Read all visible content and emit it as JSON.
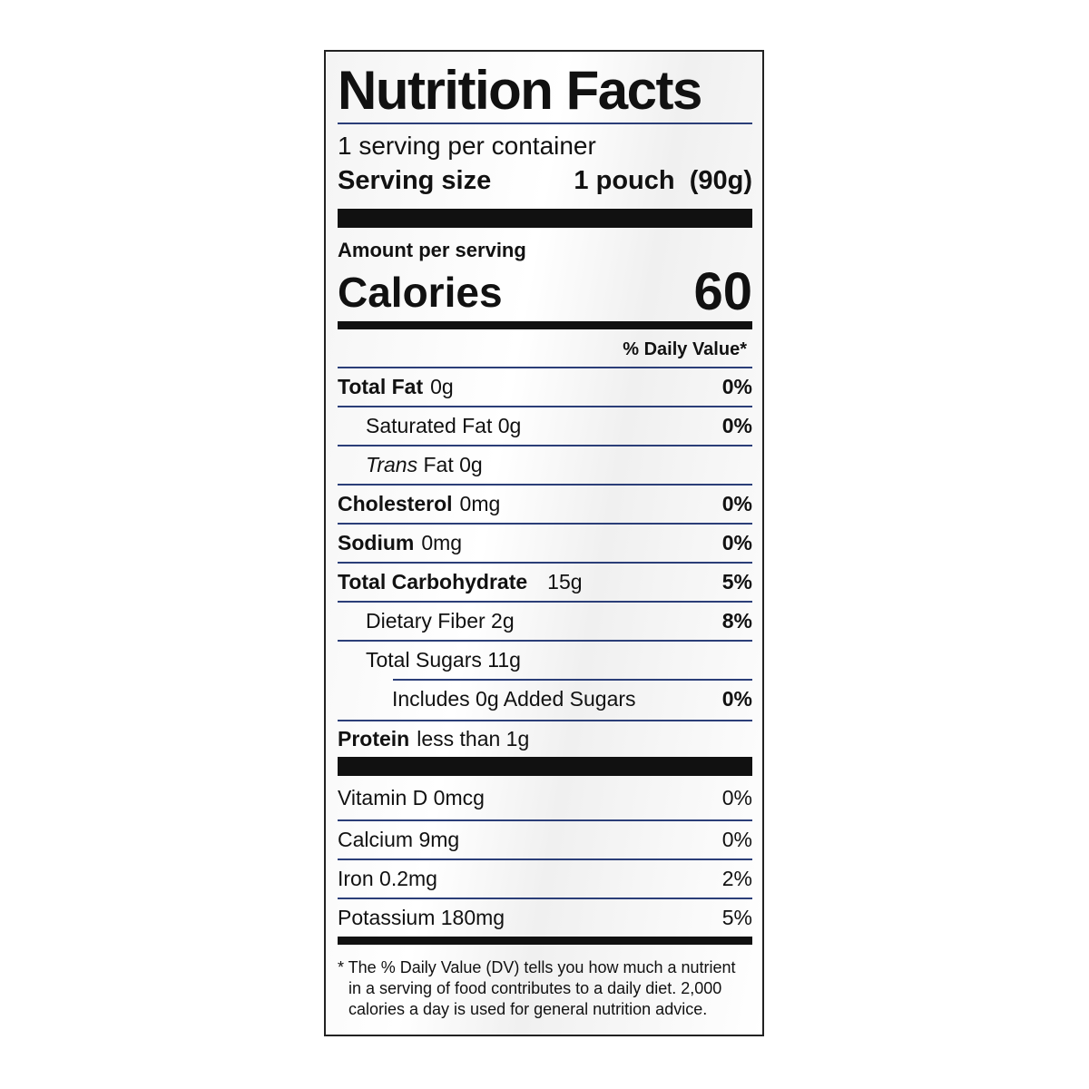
{
  "title": "Nutrition Facts",
  "servings_per_container": "1 serving per container",
  "serving_size": {
    "label": "Serving size",
    "value": "1 pouch  (90g)"
  },
  "amount_per_serving": "Amount per serving",
  "calories": {
    "label": "Calories",
    "value": "60"
  },
  "daily_value_header": "% Daily Value*",
  "nutrients": [
    {
      "label": "Total Fat",
      "amount": "0g",
      "dv": "0%"
    },
    {
      "label": "Saturated Fat 0g",
      "dv": "0%"
    },
    {
      "label_italic": "Trans",
      "label": "Fat 0g",
      "dv": ""
    },
    {
      "label": "Cholesterol",
      "amount": "0mg",
      "dv": "0%"
    },
    {
      "label": "Sodium",
      "amount": "0mg",
      "dv": "0%"
    },
    {
      "label": "Total Carbohydrate",
      "amount": "15g",
      "dv": "5%"
    },
    {
      "label": "Dietary Fiber 2g",
      "dv": "8%"
    },
    {
      "label": "Total Sugars 11g",
      "dv": ""
    },
    {
      "label": "Includes 0g Added Sugars",
      "dv": "0%"
    },
    {
      "label": "Protein",
      "amount": "less than 1g",
      "dv": ""
    }
  ],
  "vitamins": [
    {
      "label": "Vitamin D 0mcg",
      "dv": "0%"
    },
    {
      "label": "Calcium 9mg",
      "dv": "0%"
    },
    {
      "label": "Iron 0.2mg",
      "dv": "2%"
    },
    {
      "label": "Potassium 180mg",
      "dv": "5%"
    }
  ],
  "footnote": "* The % Daily Value (DV) tells you how much a nutrient in a serving of food contributes to a daily diet. 2,000 calories a day is used for general nutrition advice.",
  "colors": {
    "rule": "#2b3e78",
    "bar": "#111111"
  }
}
